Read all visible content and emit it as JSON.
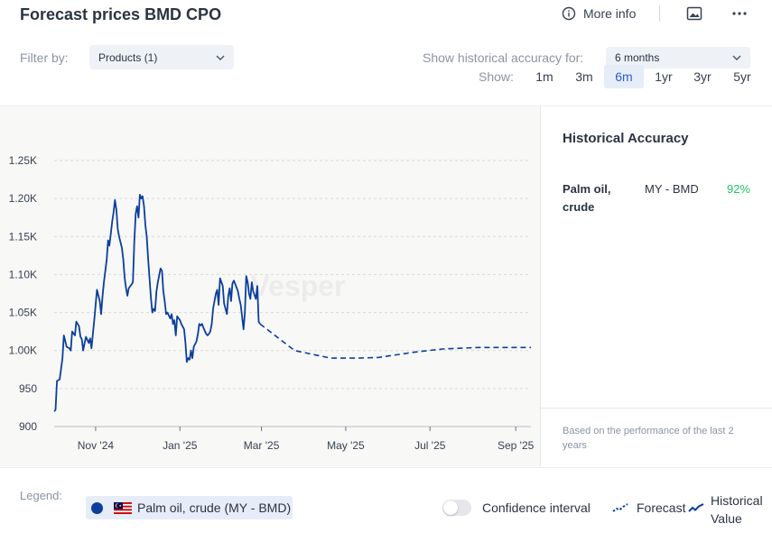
{
  "header": {
    "title": "Forecast prices BMD CPO",
    "more_info": "More info",
    "icons": [
      "info-icon",
      "image-icon",
      "more-dots-icon"
    ]
  },
  "filters": {
    "filter_label": "Filter by:",
    "products_value": "Products (1)",
    "accuracy_label": "Show historical accuracy for:",
    "accuracy_value": "6 months",
    "show_label": "Show:",
    "ranges": [
      "1m",
      "3m",
      "6m",
      "1yr",
      "3yr",
      "5yr"
    ],
    "active_range": "6m"
  },
  "side_panel": {
    "title": "Historical Accuracy",
    "rows": [
      {
        "name": "Palm oil, crude",
        "market": "MY - BMD",
        "value": "92%"
      }
    ],
    "footnote": "Based on the performance of the last 2 years"
  },
  "legend": {
    "label": "Legend:",
    "series_chip": "Palm oil, crude (MY - BMD)",
    "confidence": "Confidence interval",
    "confidence_on": false,
    "forecast": "Forecast",
    "historical": "Historical Value"
  },
  "colors": {
    "series": "#0a3f9c",
    "accent": "#2f5bd3",
    "positive": "#22c55e"
  },
  "chart_data": {
    "type": "line",
    "watermark": "Vesper",
    "y_ticks": [
      "900",
      "950",
      "1.00K",
      "1.05K",
      "1.10K",
      "1.15K",
      "1.20K",
      "1.25K"
    ],
    "ylim": [
      900,
      1250
    ],
    "x_ticks": [
      {
        "label": "Nov '24",
        "date": "2024-11-01"
      },
      {
        "label": "Jan '25",
        "date": "2025-01-01"
      },
      {
        "label": "Mar '25",
        "date": "2025-03-01"
      },
      {
        "label": "May '25",
        "date": "2025-05-01"
      },
      {
        "label": "Jul '25",
        "date": "2025-07-01"
      },
      {
        "label": "Sep '25",
        "date": "2025-09-01"
      }
    ],
    "xlim": [
      "2024-10-02",
      "2025-09-12"
    ],
    "grid": true,
    "series": [
      {
        "name": "Historical Value",
        "style": "solid",
        "points": [
          [
            "2024-10-02",
            920
          ],
          [
            "2024-10-03",
            922
          ],
          [
            "2024-10-04",
            960
          ],
          [
            "2024-10-06",
            962
          ],
          [
            "2024-10-08",
            990
          ],
          [
            "2024-10-09",
            1020
          ],
          [
            "2024-10-11",
            1005
          ],
          [
            "2024-10-13",
            1003
          ],
          [
            "2024-10-14",
            1000
          ],
          [
            "2024-10-15",
            1025
          ],
          [
            "2024-10-17",
            1020
          ],
          [
            "2024-10-18",
            1038
          ],
          [
            "2024-10-20",
            1032
          ],
          [
            "2024-10-21",
            1018
          ],
          [
            "2024-10-22",
            1015
          ],
          [
            "2024-10-23",
            1000
          ],
          [
            "2024-10-24",
            1010
          ],
          [
            "2024-10-25",
            1018
          ],
          [
            "2024-10-27",
            1010
          ],
          [
            "2024-10-28",
            1016
          ],
          [
            "2024-10-29",
            1003
          ],
          [
            "2024-10-31",
            1040
          ],
          [
            "2024-11-01",
            1060
          ],
          [
            "2024-11-02",
            1080
          ],
          [
            "2024-11-04",
            1065
          ],
          [
            "2024-11-05",
            1048
          ],
          [
            "2024-11-06",
            1072
          ],
          [
            "2024-11-07",
            1090
          ],
          [
            "2024-11-09",
            1120
          ],
          [
            "2024-11-10",
            1145
          ],
          [
            "2024-11-11",
            1138
          ],
          [
            "2024-11-13",
            1170
          ],
          [
            "2024-11-14",
            1182
          ],
          [
            "2024-11-15",
            1198
          ],
          [
            "2024-11-16",
            1185
          ],
          [
            "2024-11-17",
            1160
          ],
          [
            "2024-11-18",
            1150
          ],
          [
            "2024-11-20",
            1135
          ],
          [
            "2024-11-21",
            1120
          ],
          [
            "2024-11-22",
            1095
          ],
          [
            "2024-11-23",
            1082
          ],
          [
            "2024-11-24",
            1072
          ],
          [
            "2024-11-25",
            1082
          ],
          [
            "2024-11-27",
            1087
          ],
          [
            "2024-11-28",
            1090
          ],
          [
            "2024-11-29",
            1145
          ],
          [
            "2024-11-30",
            1180
          ],
          [
            "2024-12-01",
            1190
          ],
          [
            "2024-12-02",
            1175
          ],
          [
            "2024-12-03",
            1205
          ],
          [
            "2024-12-04",
            1200
          ],
          [
            "2024-12-05",
            1203
          ],
          [
            "2024-12-06",
            1190
          ],
          [
            "2024-12-07",
            1165
          ],
          [
            "2024-12-08",
            1150
          ],
          [
            "2024-12-09",
            1120
          ],
          [
            "2024-12-10",
            1095
          ],
          [
            "2024-12-11",
            1070
          ],
          [
            "2024-12-12",
            1050
          ],
          [
            "2024-12-13",
            1055
          ],
          [
            "2024-12-14",
            1052
          ],
          [
            "2024-12-15",
            1078
          ],
          [
            "2024-12-16",
            1090
          ],
          [
            "2024-12-18",
            1108
          ],
          [
            "2024-12-19",
            1105
          ],
          [
            "2024-12-20",
            1078
          ],
          [
            "2024-12-21",
            1065
          ],
          [
            "2024-12-22",
            1048
          ],
          [
            "2024-12-23",
            1050
          ],
          [
            "2024-12-25",
            1042
          ],
          [
            "2024-12-26",
            1048
          ],
          [
            "2024-12-27",
            1035
          ],
          [
            "2024-12-28",
            1040
          ],
          [
            "2024-12-29",
            1020
          ],
          [
            "2024-12-30",
            1045
          ],
          [
            "2025-01-01",
            1040
          ],
          [
            "2025-01-02",
            1035
          ],
          [
            "2025-01-04",
            1028
          ],
          [
            "2025-01-05",
            1010
          ],
          [
            "2025-01-06",
            985
          ],
          [
            "2025-01-07",
            990
          ],
          [
            "2025-01-08",
            988
          ],
          [
            "2025-01-09",
            1000
          ],
          [
            "2025-01-10",
            990
          ],
          [
            "2025-01-11",
            1005
          ],
          [
            "2025-01-13",
            1012
          ],
          [
            "2025-01-14",
            1022
          ],
          [
            "2025-01-15",
            1035
          ],
          [
            "2025-01-16",
            1033
          ],
          [
            "2025-01-17",
            1035
          ],
          [
            "2025-01-18",
            1030
          ],
          [
            "2025-01-20",
            1022
          ],
          [
            "2025-01-21",
            1020
          ],
          [
            "2025-01-22",
            1022
          ],
          [
            "2025-01-23",
            1025
          ],
          [
            "2025-01-24",
            1035
          ],
          [
            "2025-01-25",
            1055
          ],
          [
            "2025-01-27",
            1075
          ],
          [
            "2025-01-28",
            1080
          ],
          [
            "2025-01-29",
            1060
          ],
          [
            "2025-01-30",
            1095
          ],
          [
            "2025-02-01",
            1085
          ],
          [
            "2025-02-02",
            1062
          ],
          [
            "2025-02-04",
            1048
          ],
          [
            "2025-02-05",
            1072
          ],
          [
            "2025-02-06",
            1082
          ],
          [
            "2025-02-07",
            1065
          ],
          [
            "2025-02-08",
            1088
          ],
          [
            "2025-02-09",
            1092
          ],
          [
            "2025-02-11",
            1083
          ],
          [
            "2025-02-12",
            1078
          ],
          [
            "2025-02-13",
            1068
          ],
          [
            "2025-02-14",
            1060
          ],
          [
            "2025-02-15",
            1045
          ],
          [
            "2025-02-16",
            1028
          ],
          [
            "2025-02-17",
            1050
          ],
          [
            "2025-02-18",
            1098
          ],
          [
            "2025-02-19",
            1090
          ],
          [
            "2025-02-20",
            1075
          ],
          [
            "2025-02-21",
            1068
          ],
          [
            "2025-02-22",
            1090
          ],
          [
            "2025-02-23",
            1078
          ],
          [
            "2025-02-25",
            1068
          ],
          [
            "2025-02-26",
            1085
          ],
          [
            "2025-02-27",
            1038
          ],
          [
            "2025-02-28",
            1035
          ]
        ]
      },
      {
        "name": "Forecast",
        "style": "dashed",
        "points": [
          [
            "2025-02-28",
            1035
          ],
          [
            "2025-03-25",
            1000
          ],
          [
            "2025-04-20",
            990
          ],
          [
            "2025-05-10",
            990
          ],
          [
            "2025-05-25",
            991
          ],
          [
            "2025-06-20",
            998
          ],
          [
            "2025-07-10",
            1002
          ],
          [
            "2025-08-05",
            1004
          ],
          [
            "2025-09-12",
            1004
          ]
        ]
      }
    ]
  }
}
